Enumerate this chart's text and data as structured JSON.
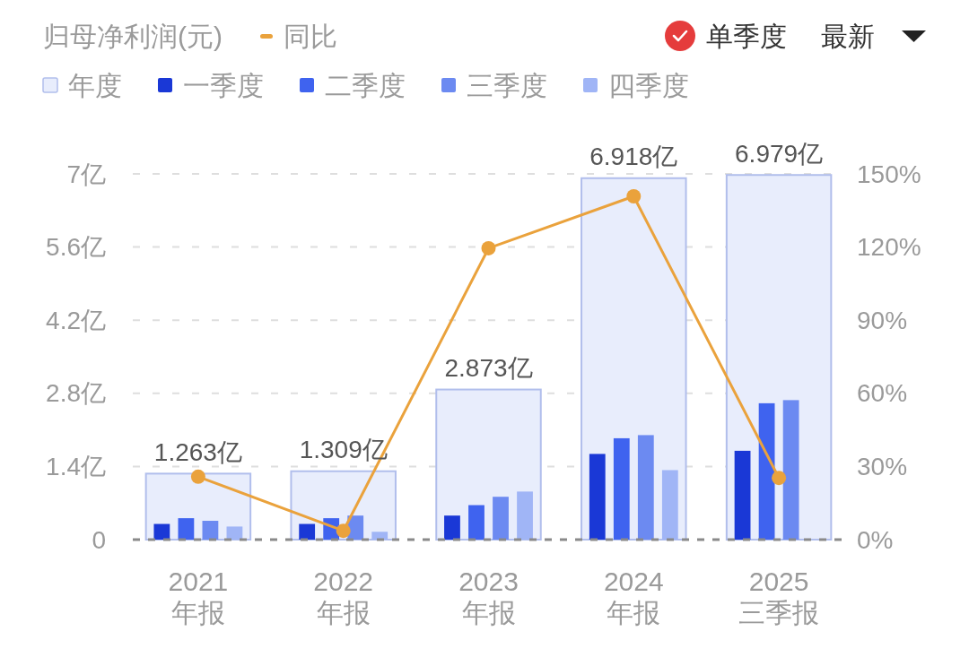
{
  "chart_data": {
    "type": "bar",
    "title": "归母净利润(元)",
    "categories": [
      "2021\n年报",
      "2022\n年报",
      "2023\n年报",
      "2024\n年报",
      "2025\n三季报"
    ],
    "series": [
      {
        "name": "年度",
        "color": "#e8edfc",
        "values": [
          1.263,
          1.309,
          2.873,
          6.918,
          6.979
        ],
        "value_labels": [
          "1.263亿",
          "1.309亿",
          "2.873亿",
          "6.918亿",
          "6.979亿"
        ]
      },
      {
        "name": "一季度",
        "color": "#1a38d6",
        "values": [
          0.3,
          0.3,
          0.46,
          1.64,
          1.7
        ]
      },
      {
        "name": "二季度",
        "color": "#3f63ef",
        "values": [
          0.41,
          0.41,
          0.66,
          1.94,
          2.61
        ]
      },
      {
        "name": "三季度",
        "color": "#6c8af1",
        "values": [
          0.36,
          0.46,
          0.82,
          2.0,
          2.67
        ]
      },
      {
        "name": "四季度",
        "color": "#a0b5f6",
        "values": [
          0.25,
          0.15,
          0.92,
          1.33,
          null
        ]
      },
      {
        "name": "同比",
        "type": "line",
        "axis": "y2",
        "color": "#eaa23c",
        "values": [
          25.8,
          3.6,
          119.5,
          140.8,
          25.3
        ]
      }
    ],
    "ylim": [
      0,
      7
    ],
    "yticks": [
      0,
      {
        "value": 1.4,
        "label": "1.4亿"
      },
      {
        "value": 2.8,
        "label": "2.8亿"
      },
      {
        "value": 4.2,
        "label": "4.2亿"
      },
      {
        "value": 5.6,
        "label": "5.6亿"
      },
      {
        "value": 7,
        "label": "7亿"
      }
    ],
    "y2lim": [
      0,
      150
    ],
    "y2ticks": [
      {
        "value": 0,
        "label": "0%"
      },
      {
        "value": 30,
        "label": "30%"
      },
      {
        "value": 60,
        "label": "60%"
      },
      {
        "value": 90,
        "label": "90%"
      },
      {
        "value": 120,
        "label": "120%"
      },
      {
        "value": 150,
        "label": "150%"
      }
    ],
    "grid": "y",
    "legend": "top",
    "marker": "circle",
    "line_style": "solid",
    "annotations": [
      "单季度",
      "最新"
    ]
  }
}
